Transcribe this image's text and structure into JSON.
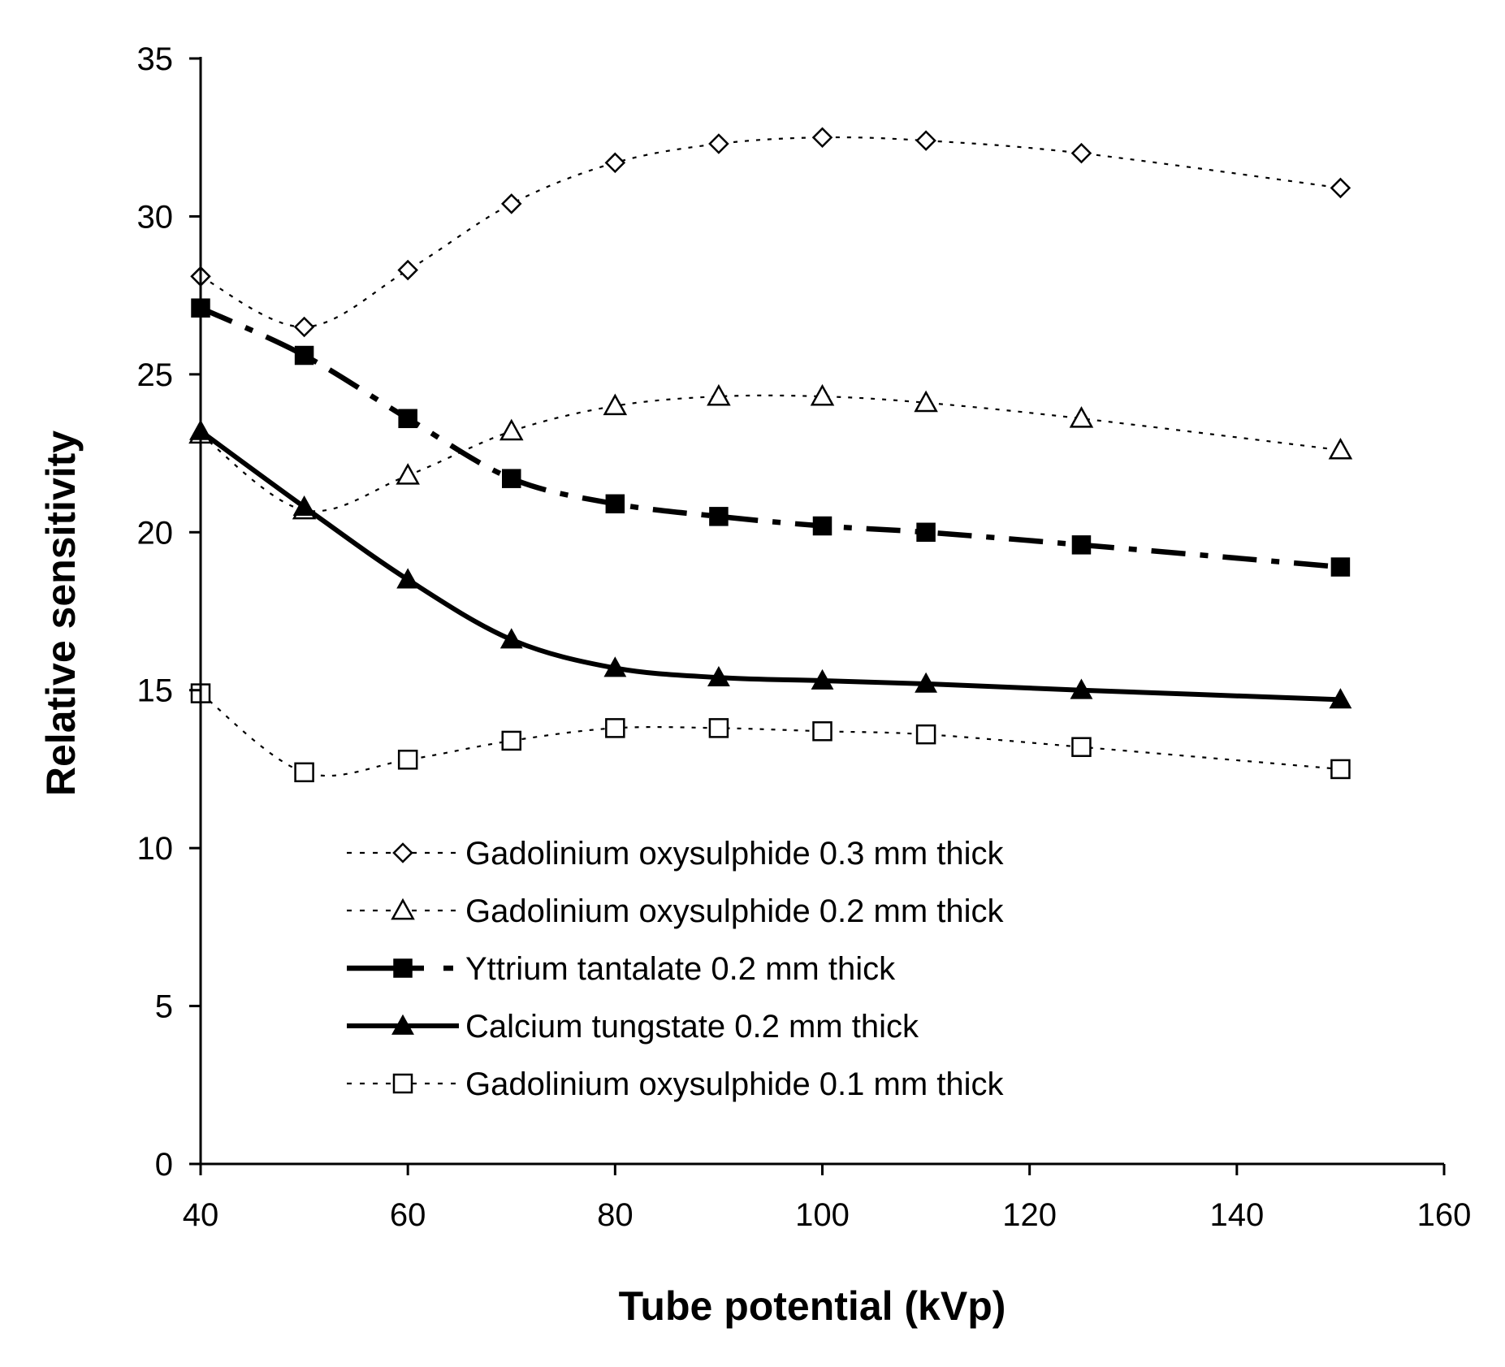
{
  "chart_data": {
    "type": "line",
    "title": "",
    "xlabel": "Tube potential (kVp)",
    "ylabel": "Relative sensitivity",
    "xlim": [
      40,
      160
    ],
    "ylim": [
      0,
      35
    ],
    "x_ticks": [
      40,
      60,
      80,
      100,
      120,
      140,
      160
    ],
    "y_ticks": [
      0,
      5,
      10,
      15,
      20,
      25,
      30,
      35
    ],
    "grid": false,
    "legend_position": "inside-lower-center",
    "x": [
      40,
      50,
      60,
      70,
      80,
      90,
      100,
      110,
      125,
      150
    ],
    "series": [
      {
        "name": "Gadolinium oxysulphide 0.3 mm thick",
        "marker": "diamond-open",
        "line_style": "dotted",
        "values": [
          28.1,
          26.5,
          28.3,
          30.4,
          31.7,
          32.3,
          32.5,
          32.4,
          32.0,
          30.9
        ]
      },
      {
        "name": "Gadolinium oxysulphide 0.2 mm thick",
        "marker": "triangle-open",
        "line_style": "dotted",
        "values": [
          23.1,
          20.7,
          21.8,
          23.2,
          24.0,
          24.3,
          24.3,
          24.1,
          23.6,
          22.6
        ]
      },
      {
        "name": "Yttrium tantalate 0.2 mm thick",
        "marker": "square-filled",
        "line_style": "dash-dot",
        "values": [
          27.1,
          25.6,
          23.6,
          21.7,
          20.9,
          20.5,
          20.2,
          20.0,
          19.6,
          18.9
        ]
      },
      {
        "name": "Calcium tungstate 0.2 mm thick",
        "marker": "triangle-filled",
        "line_style": "solid",
        "values": [
          23.2,
          20.8,
          18.5,
          16.6,
          15.7,
          15.4,
          15.3,
          15.2,
          15.0,
          14.7
        ]
      },
      {
        "name": "Gadolinium oxysulphide 0.1 mm thick",
        "marker": "square-open",
        "line_style": "dotted",
        "values": [
          14.9,
          12.4,
          12.8,
          13.4,
          13.8,
          13.8,
          13.7,
          13.6,
          13.2,
          12.5
        ]
      }
    ]
  }
}
